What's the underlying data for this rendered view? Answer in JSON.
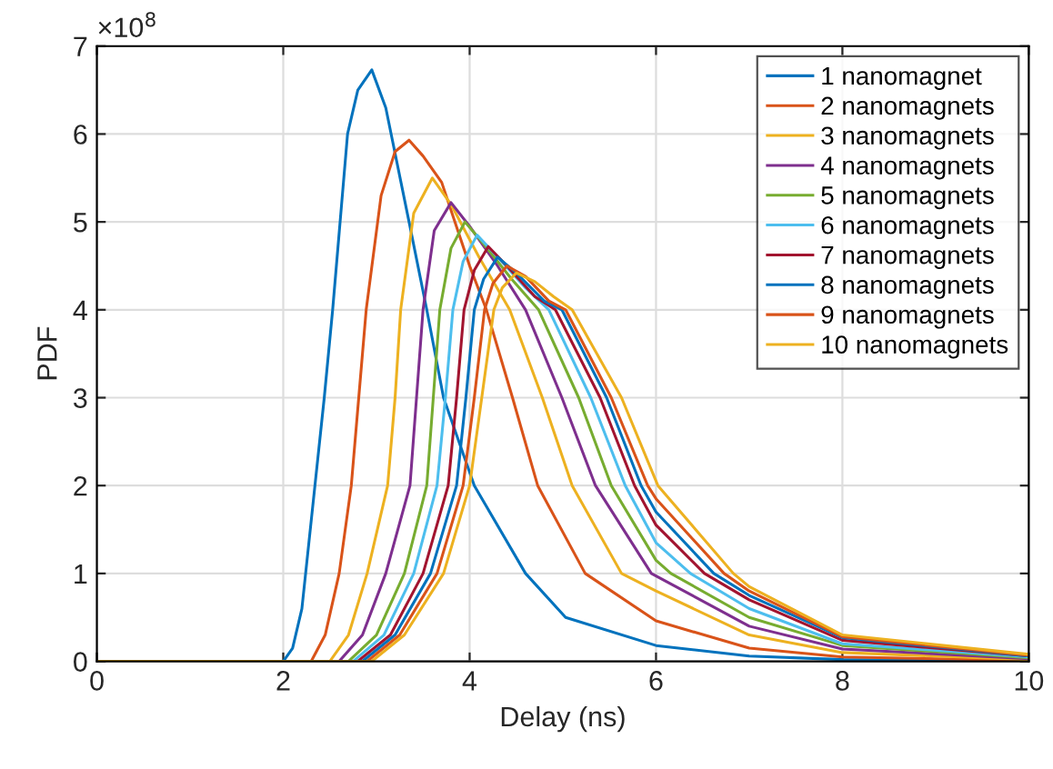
{
  "chart_data": {
    "type": "line",
    "xlabel": "Delay (ns)",
    "ylabel": "PDF",
    "annotations": [
      "×10$^{8}$"
    ],
    "xlim": [
      0,
      10
    ],
    "ylim": [
      0,
      7
    ],
    "xticks": [
      0,
      2,
      4,
      6,
      8,
      10
    ],
    "yticks": [
      0,
      1,
      2,
      3,
      4,
      5,
      6,
      7
    ],
    "grid": true,
    "legend": "top right",
    "line_style": "solid",
    "marker": "none",
    "series": [
      {
        "name": "1 nanomagnet",
        "color": "#0072bd",
        "x": [
          0,
          2,
          2.1,
          2.2,
          2.34,
          2.44,
          2.53,
          2.69,
          2.8,
          2.95,
          3.1,
          3.35,
          3.54,
          3.72,
          4.05,
          4.6,
          5.03,
          6,
          7,
          8,
          10
        ],
        "values": [
          0,
          0,
          0.15,
          0.6,
          2,
          3,
          4,
          6,
          6.5,
          6.73,
          6.3,
          5,
          4,
          3,
          2,
          1,
          0.5,
          0.18,
          0.06,
          0.02,
          0
        ]
      },
      {
        "name": "2 nanomagnets",
        "color": "#d95319",
        "x": [
          0,
          2.3,
          2.45,
          2.6,
          2.73,
          2.81,
          2.89,
          3.05,
          3.2,
          3.35,
          3.5,
          3.7,
          4.0,
          4.18,
          4.46,
          4.73,
          5.24,
          6,
          7,
          8,
          10
        ],
        "values": [
          0,
          0,
          0.3,
          1,
          2,
          3,
          4,
          5.3,
          5.8,
          5.93,
          5.75,
          5.45,
          4.5,
          4,
          3,
          2,
          1,
          0.46,
          0.15,
          0.05,
          0.01
        ]
      },
      {
        "name": "3 nanomagnets",
        "color": "#edb120",
        "x": [
          0,
          2.5,
          2.7,
          2.9,
          3.12,
          3.2,
          3.26,
          3.4,
          3.6,
          3.8,
          4.1,
          4.43,
          4.78,
          5.1,
          5.63,
          6,
          7,
          8,
          10
        ],
        "values": [
          0,
          0,
          0.3,
          1,
          2,
          3,
          4,
          5.1,
          5.5,
          5.2,
          4.6,
          4,
          3,
          2,
          1,
          0.8,
          0.3,
          0.1,
          0.02
        ]
      },
      {
        "name": "4 nanomagnets",
        "color": "#7e2f8e",
        "x": [
          0,
          2.6,
          2.85,
          3.1,
          3.36,
          3.43,
          3.5,
          3.62,
          3.8,
          4.0,
          4.3,
          4.6,
          4.99,
          5.35,
          5.95,
          7,
          8,
          10
        ],
        "values": [
          0,
          0,
          0.3,
          1,
          2,
          3,
          4,
          4.9,
          5.22,
          4.95,
          4.5,
          4,
          3,
          2,
          1,
          0.4,
          0.14,
          0.03
        ]
      },
      {
        "name": "5 nanomagnets",
        "color": "#77ac30",
        "x": [
          0,
          2.7,
          3.0,
          3.3,
          3.54,
          3.61,
          3.68,
          3.8,
          3.95,
          4.15,
          4.45,
          4.74,
          5.17,
          5.52,
          6,
          6.16,
          7,
          8,
          10
        ],
        "values": [
          0,
          0,
          0.3,
          1,
          2,
          3,
          4,
          4.7,
          5,
          4.75,
          4.35,
          4,
          3,
          2,
          1.15,
          1,
          0.5,
          0.18,
          0.04
        ]
      },
      {
        "name": "6 nanomagnets",
        "color": "#4dbeee",
        "x": [
          0,
          2.75,
          3.08,
          3.4,
          3.65,
          3.74,
          3.82,
          3.93,
          4.08,
          4.3,
          4.6,
          4.85,
          5.3,
          5.67,
          6,
          6.37,
          7,
          8,
          10
        ],
        "values": [
          0,
          0,
          0.3,
          1,
          2,
          3,
          4,
          4.55,
          4.85,
          4.6,
          4.25,
          4,
          3,
          2,
          1.35,
          1,
          0.6,
          0.2,
          0.05
        ]
      },
      {
        "name": "7 nanomagnets",
        "color": "#a2142f",
        "x": [
          0,
          2.8,
          3.15,
          3.5,
          3.77,
          3.86,
          3.94,
          4.05,
          4.2,
          4.4,
          4.7,
          4.92,
          5.4,
          5.77,
          6,
          6.52,
          7,
          8,
          10
        ],
        "values": [
          0,
          0,
          0.3,
          1,
          2,
          3,
          4,
          4.45,
          4.72,
          4.5,
          4.15,
          4,
          3,
          2,
          1.55,
          1,
          0.7,
          0.24,
          0.06
        ]
      },
      {
        "name": "8 nanomagnets",
        "color": "#0072bd",
        "x": [
          0,
          2.85,
          3.2,
          3.58,
          3.86,
          3.96,
          4.05,
          4.15,
          4.3,
          4.5,
          4.8,
          4.99,
          5.47,
          5.84,
          6,
          6.62,
          7,
          8,
          10
        ],
        "values": [
          0,
          0,
          0.3,
          1,
          2,
          3,
          4,
          4.35,
          4.6,
          4.42,
          4.1,
          4,
          3,
          2,
          1.7,
          1,
          0.75,
          0.27,
          0.06
        ]
      },
      {
        "name": "9 nanomagnets",
        "color": "#d95319",
        "x": [
          0,
          2.9,
          3.25,
          3.65,
          3.93,
          4.05,
          4.16,
          4.25,
          4.4,
          4.6,
          4.85,
          5.03,
          5.52,
          5.91,
          6,
          6.73,
          7,
          8,
          10
        ],
        "values": [
          0,
          0,
          0.3,
          1,
          2,
          3,
          4,
          4.3,
          4.5,
          4.38,
          4.1,
          4,
          3,
          2,
          1.85,
          1,
          0.8,
          0.28,
          0.07
        ]
      },
      {
        "name": "10 nanomagnets",
        "color": "#edb120",
        "x": [
          0,
          2.95,
          3.3,
          3.72,
          4.0,
          4.13,
          4.26,
          4.35,
          4.5,
          4.7,
          4.9,
          5.1,
          5.63,
          6.02,
          6.83,
          7,
          8,
          10
        ],
        "values": [
          0,
          0,
          0.3,
          1,
          2,
          3,
          4,
          4.25,
          4.42,
          4.32,
          4.15,
          4,
          3,
          2,
          1,
          0.85,
          0.3,
          0.08
        ]
      }
    ]
  }
}
